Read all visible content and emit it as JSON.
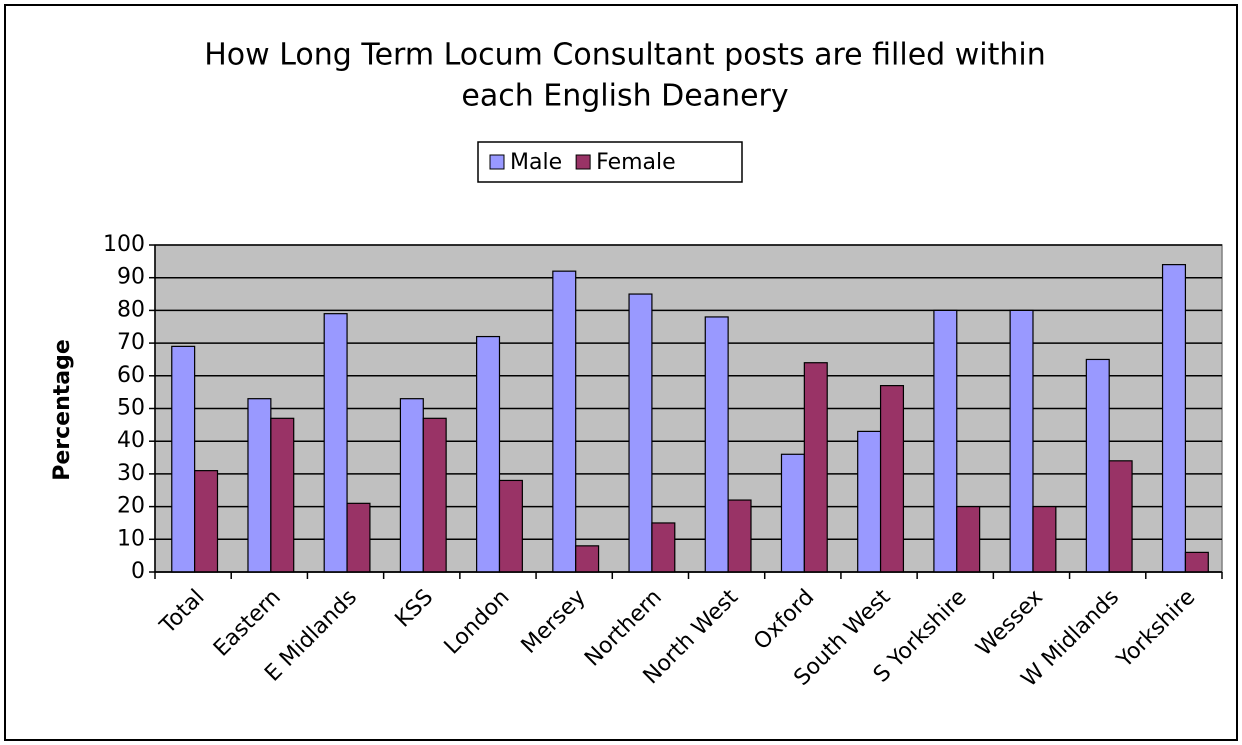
{
  "chart_data": {
    "type": "bar",
    "title": [
      "How Long Term Locum Consultant posts are filled within",
      "each English Deanery"
    ],
    "y_label": "Percentage",
    "categories": [
      "Total",
      "Eastern",
      "E Midlands",
      "KSS",
      "London",
      "Mersey",
      "Northern",
      "North West",
      "Oxford",
      "South West",
      "S Yorkshire",
      "Wessex",
      "W Midlands",
      "Yorkshire"
    ],
    "series": [
      {
        "name": "Male",
        "color": "#9999ff",
        "values": [
          69,
          53,
          79,
          53,
          72,
          92,
          85,
          78,
          36,
          43,
          80,
          80,
          65,
          94
        ]
      },
      {
        "name": "Female",
        "color": "#993366",
        "values": [
          31,
          47,
          21,
          47,
          28,
          8,
          15,
          22,
          64,
          57,
          20,
          20,
          34,
          6
        ]
      }
    ],
    "ylim": [
      0,
      100
    ],
    "yticks": [
      0,
      10,
      20,
      30,
      40,
      50,
      60,
      70,
      80,
      90,
      100
    ],
    "grid": true,
    "legend": "top"
  }
}
